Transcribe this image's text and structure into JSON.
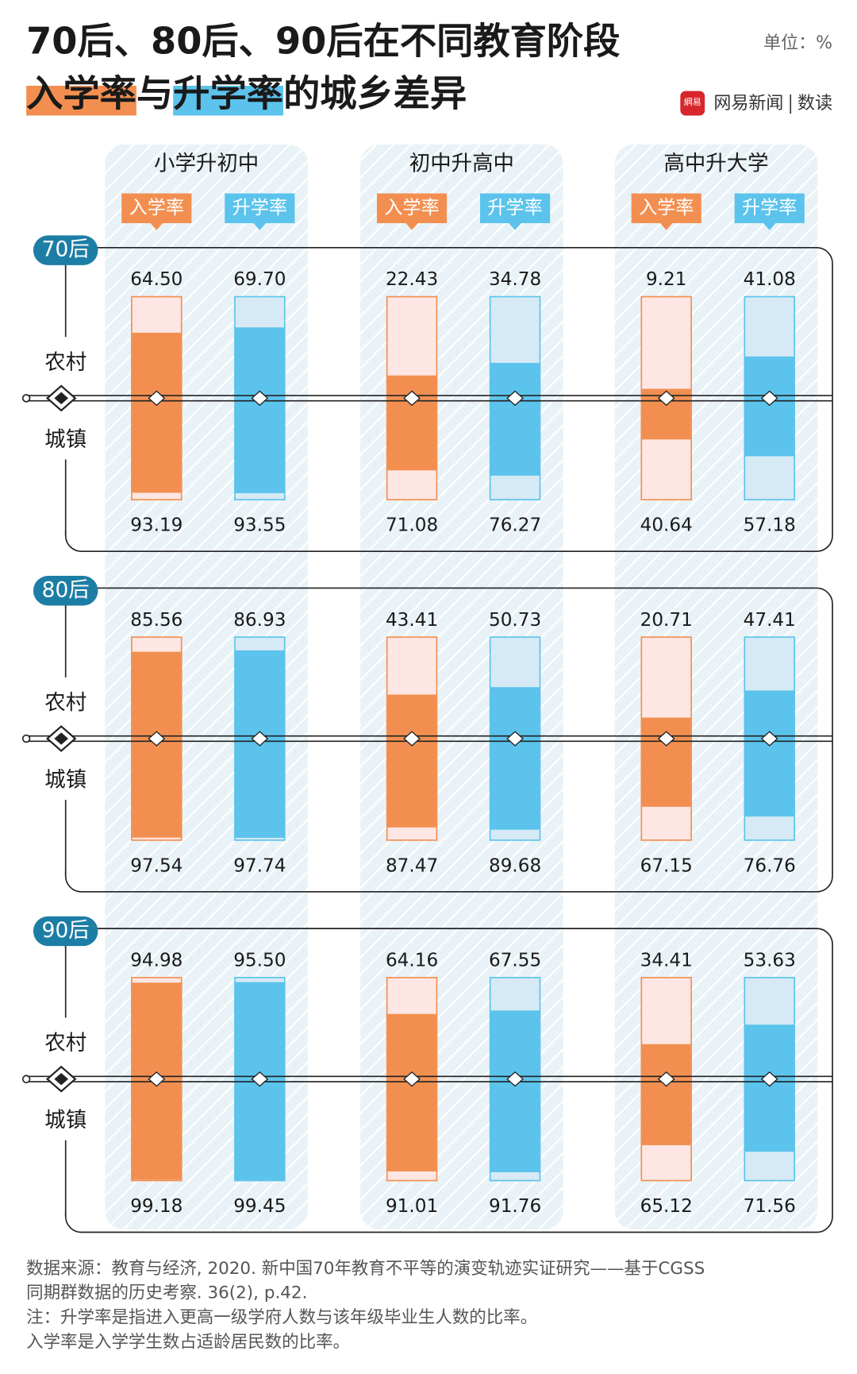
{
  "chart_data": {
    "type": "bar",
    "title": "70后、80后、90后在不同教育阶段",
    "title_line2": [
      "入学率",
      "与",
      "升学率",
      "的城乡差异"
    ],
    "unit": "单位：%",
    "logo": "網易",
    "brand": "网易新闻",
    "brand_section": "数读",
    "categories": [
      "小学升初中",
      "初中升高中",
      "高中升大学"
    ],
    "series": [
      {
        "name": "入学率",
        "color": "#f28f50",
        "track": "#fde6e3"
      },
      {
        "name": "升学率",
        "color": "#5bc3ec",
        "track": "#d6eaf5"
      }
    ],
    "rows": [
      "农村",
      "城镇"
    ],
    "ylim": [
      0,
      100
    ],
    "cohorts": [
      {
        "name": "70后",
        "rural": {
          "values": [
            [
              64.5,
              69.7
            ],
            [
              22.43,
              34.78
            ],
            [
              9.21,
              41.08
            ]
          ],
          "value_labels": [
            [
              "64.50",
              "69.70"
            ],
            [
              "22.43",
              "34.78"
            ],
            [
              "9.21",
              "41.08"
            ]
          ]
        },
        "urban": {
          "values": [
            [
              93.19,
              93.55
            ],
            [
              71.08,
              76.27
            ],
            [
              40.64,
              57.18
            ]
          ],
          "value_labels": [
            [
              "93.19",
              "93.55"
            ],
            [
              "71.08",
              "76.27"
            ],
            [
              "40.64",
              "57.18"
            ]
          ]
        }
      },
      {
        "name": "80后",
        "rural": {
          "values": [
            [
              85.56,
              86.93
            ],
            [
              43.41,
              50.73
            ],
            [
              20.71,
              47.41
            ]
          ],
          "value_labels": [
            [
              "85.56",
              "86.93"
            ],
            [
              "43.41",
              "50.73"
            ],
            [
              "20.71",
              "47.41"
            ]
          ]
        },
        "urban": {
          "values": [
            [
              97.54,
              97.74
            ],
            [
              87.47,
              89.68
            ],
            [
              67.15,
              76.76
            ]
          ],
          "value_labels": [
            [
              "97.54",
              "97.74"
            ],
            [
              "87.47",
              "89.68"
            ],
            [
              "67.15",
              "76.76"
            ]
          ]
        }
      },
      {
        "name": "90后",
        "rural": {
          "values": [
            [
              94.98,
              95.5
            ],
            [
              64.16,
              67.55
            ],
            [
              34.41,
              53.63
            ]
          ],
          "value_labels": [
            [
              "94.98",
              "95.50"
            ],
            [
              "64.16",
              "67.55"
            ],
            [
              "34.41",
              "53.63"
            ]
          ]
        },
        "urban": {
          "values": [
            [
              99.18,
              99.45
            ],
            [
              91.01,
              91.76
            ],
            [
              65.12,
              71.56
            ]
          ],
          "value_labels": [
            [
              "99.18",
              "99.45"
            ],
            [
              "91.01",
              "91.76"
            ],
            [
              "65.12",
              "71.56"
            ]
          ]
        }
      }
    ],
    "source": [
      "数据来源：教育与经济, 2020. 新中国70年教育不平等的演变轨迹实证研究——基于CGSS",
      "同期群数据的历史考察. 36(2), p.42."
    ],
    "notes": [
      "注：升学率是指进入更高一级学府人数与该年级毕业生人数的比率。",
      "入学率是入学学生数占适龄居民数的比率。"
    ]
  }
}
